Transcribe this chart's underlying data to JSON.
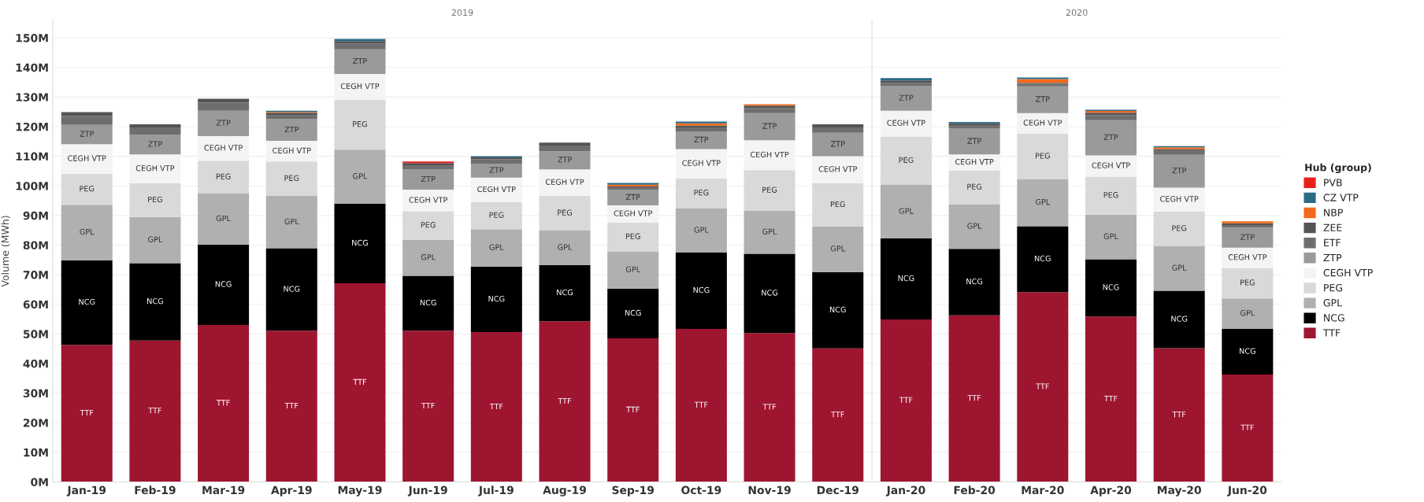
{
  "chart_data": [
    {
      "type": "bar",
      "title": "2019",
      "ylabel": "Volume (MWh)",
      "stacked": true,
      "grid": "y",
      "categories": [
        "Jan-19",
        "Feb-19",
        "Mar-19",
        "Apr-19",
        "May-19",
        "Jun-19",
        "Jul-19",
        "Aug-19",
        "Sep-19",
        "Oct-19",
        "Nov-19",
        "Dec-19"
      ],
      "ylim": [
        0,
        156
      ],
      "yticks": [
        {
          "value": 0,
          "label": "0M"
        },
        {
          "value": 10,
          "label": "10M"
        },
        {
          "value": 20,
          "label": "20M"
        },
        {
          "value": 30,
          "label": "30M"
        },
        {
          "value": 40,
          "label": "40M"
        },
        {
          "value": 50,
          "label": "50M"
        },
        {
          "value": 60,
          "label": "60M"
        },
        {
          "value": 70,
          "label": "70M"
        },
        {
          "value": 80,
          "label": "80M"
        },
        {
          "value": 90,
          "label": "90M"
        },
        {
          "value": 100,
          "label": "100M"
        },
        {
          "value": 110,
          "label": "110M"
        },
        {
          "value": 120,
          "label": "120M"
        },
        {
          "value": 130,
          "label": "130M"
        },
        {
          "value": 140,
          "label": "140M"
        },
        {
          "value": 150,
          "label": "150M"
        }
      ],
      "series": [
        {
          "color": "#9e1530",
          "values": [
            46.3,
            47.8,
            53.0,
            51.1,
            67.1,
            51.1,
            50.6,
            54.3,
            48.5,
            51.7,
            50.3,
            45.1
          ],
          "value_labels": [
            "TTF",
            "TTF",
            "TTF",
            "TTF",
            "TTF",
            "TTF",
            "TTF",
            "TTF",
            "TTF",
            "TTF",
            "TTF",
            "TTF"
          ]
        },
        {
          "color": "#000000",
          "values": [
            28.6,
            26.1,
            27.2,
            27.8,
            26.9,
            18.5,
            22.1,
            19.0,
            16.8,
            25.8,
            26.8,
            25.8
          ],
          "value_labels": [
            "NCG",
            "NCG",
            "NCG",
            "NCG",
            "NCG",
            "NCG",
            "NCG",
            "NCG",
            "NCG",
            "NCG",
            "NCG",
            "NCG"
          ]
        },
        {
          "color": "#b0b0b0",
          "values": [
            18.7,
            15.6,
            17.2,
            17.7,
            18.2,
            12.2,
            12.7,
            11.6,
            12.6,
            14.9,
            14.5,
            15.4
          ],
          "value_labels": [
            "GPL",
            "GPL",
            "GPL",
            "GPL",
            "GPL",
            "GPL",
            "GPL",
            "GPL",
            "GPL",
            "GPL",
            "GPL",
            "GPL"
          ]
        },
        {
          "color": "#d9d9d9",
          "values": [
            10.5,
            11.4,
            11.1,
            11.6,
            16.9,
            9.6,
            9.1,
            11.7,
            9.7,
            10.2,
            13.7,
            14.6
          ],
          "value_labels": [
            "PEG",
            "PEG",
            "PEG",
            "PEG",
            "PEG",
            "PEG",
            "PEG",
            "PEG",
            "PEG",
            "PEG",
            "PEG",
            "PEG"
          ]
        },
        {
          "color": "#f4f4f4",
          "values": [
            10.0,
            9.7,
            8.3,
            7.0,
            8.7,
            7.3,
            8.3,
            9.0,
            5.8,
            9.8,
            10.1,
            9.1
          ],
          "value_labels": [
            "CEGH VTP",
            "CEGH VTP",
            "CEGH VTP",
            "CEGH VTP",
            "CEGH VTP",
            "CEGH VTP",
            "CEGH VTP",
            "CEGH VTP",
            "CEGH VTP",
            "CEGH VTP",
            "CEGH VTP",
            "CEGH VTP"
          ]
        },
        {
          "color": "#9a9a9a",
          "values": [
            6.5,
            6.6,
            8.6,
            7.3,
            8.3,
            6.8,
            4.7,
            6.1,
            5.2,
            6.0,
            9.2,
            7.9
          ],
          "value_labels": [
            "ZTP",
            "ZTP",
            "ZTP",
            "ZTP",
            "ZTP",
            "ZTP",
            "ZTP",
            "ZTP",
            "ZTP",
            "ZTP",
            "ZTP",
            "ZTP"
          ]
        },
        {
          "color": "#6e6e6e",
          "values": [
            3.0,
            2.5,
            2.7,
            1.3,
            2.0,
            1.5,
            1.5,
            1.9,
            0.7,
            1.3,
            1.7,
            1.8
          ]
        },
        {
          "color": "#545454",
          "values": [
            1.3,
            1.1,
            1.3,
            0.9,
            0.8,
            0.7,
            0.6,
            1.0,
            0.5,
            0.7,
            0.8,
            1.1
          ]
        },
        {
          "color": "#f26a1b",
          "values": [
            0,
            0,
            0,
            0.3,
            0,
            0,
            0,
            0,
            0.6,
            0.7,
            0.5,
            0
          ]
        },
        {
          "color": "#2a6b86",
          "values": [
            0,
            0,
            0,
            0.4,
            0.7,
            0,
            0.4,
            0,
            0.6,
            0.6,
            0,
            0
          ]
        },
        {
          "color": "#e8201a",
          "values": [
            0,
            0,
            0,
            0,
            0,
            0.5,
            0,
            0,
            0,
            0,
            0,
            0
          ]
        }
      ]
    },
    {
      "type": "bar",
      "title": "2020",
      "stacked": true,
      "grid": "y",
      "legend": "right",
      "legend_title": "Hub (group)",
      "tick_labels": "x",
      "categories": [
        "Jan-20",
        "Feb-20",
        "Mar-20",
        "Apr-20",
        "May-20",
        "Jun-20"
      ],
      "ylim": [
        0,
        156
      ],
      "yticks": [
        {
          "value": 0,
          "label": null
        },
        {
          "value": 10,
          "label": null
        },
        {
          "value": 20,
          "label": null
        },
        {
          "value": 30,
          "label": null
        },
        {
          "value": 40,
          "label": null
        },
        {
          "value": 50,
          "label": null
        },
        {
          "value": 60,
          "label": null
        },
        {
          "value": 70,
          "label": null
        },
        {
          "value": 80,
          "label": null
        },
        {
          "value": 90,
          "label": null
        },
        {
          "value": 100,
          "label": null
        },
        {
          "value": 110,
          "label": null
        },
        {
          "value": 120,
          "label": null
        },
        {
          "value": 130,
          "label": null
        },
        {
          "value": 140,
          "label": null
        },
        {
          "value": 150,
          "label": null
        }
      ],
      "series": [
        {
          "name": "TTF",
          "color": "#9e1530",
          "values": [
            54.9,
            56.3,
            64.1,
            55.9,
            45.2,
            36.3
          ],
          "value_labels": [
            "TTF",
            "TTF",
            "TTF",
            "TTF",
            "TTF",
            "TTF"
          ]
        },
        {
          "name": "NCG",
          "color": "#000000",
          "values": [
            27.4,
            22.4,
            22.3,
            19.3,
            19.4,
            15.4
          ],
          "value_labels": [
            "NCG",
            "NCG",
            "NCG",
            "NCG",
            "NCG",
            "NCG"
          ]
        },
        {
          "name": "GPL",
          "color": "#b0b0b0",
          "values": [
            18.0,
            15.1,
            15.9,
            15.1,
            15.1,
            10.3
          ],
          "value_labels": [
            "GPL",
            "GPL",
            "GPL",
            "GPL",
            "GPL",
            "GPL"
          ]
        },
        {
          "name": "PEG",
          "color": "#d9d9d9",
          "values": [
            16.4,
            11.4,
            15.3,
            12.8,
            11.6,
            10.3
          ],
          "value_labels": [
            "PEG",
            "PEG",
            "PEG",
            "PEG",
            "PEG",
            "PEG"
          ]
        },
        {
          "name": "CEGH VTP",
          "color": "#f4f4f4",
          "values": [
            8.7,
            5.4,
            7.0,
            7.2,
            8.1,
            6.8
          ],
          "value_labels": [
            "CEGH VTP",
            "CEGH VTP",
            "CEGH VTP",
            "CEGH VTP",
            "CEGH VTP",
            "CEGH VTP"
          ]
        },
        {
          "name": "ZTP",
          "color": "#9a9a9a",
          "values": [
            8.3,
            8.7,
            9.0,
            11.9,
            11.1,
            6.8
          ],
          "value_labels": [
            "ZTP",
            "ZTP",
            "ZTP",
            "ZTP",
            "ZTP",
            "ZTP"
          ]
        },
        {
          "name": "ETF",
          "color": "#6e6e6e",
          "values": [
            1.1,
            1.2,
            0.9,
            1.7,
            1.3,
            0.9
          ]
        },
        {
          "name": "ZEE",
          "color": "#545454",
          "values": [
            0.8,
            0.6,
            0.3,
            0.8,
            0.6,
            0.6
          ]
        },
        {
          "name": "NBP",
          "color": "#f26a1b",
          "values": [
            0,
            0,
            1.3,
            0.6,
            0.6,
            0.6
          ]
        },
        {
          "name": "CZ VTP",
          "color": "#2a6b86",
          "values": [
            0.8,
            0.5,
            0.5,
            0.4,
            0.4,
            0
          ]
        },
        {
          "name": "PVB",
          "color": "#e8201a",
          "values": [
            0,
            0,
            0,
            0,
            0,
            0
          ]
        }
      ]
    }
  ]
}
